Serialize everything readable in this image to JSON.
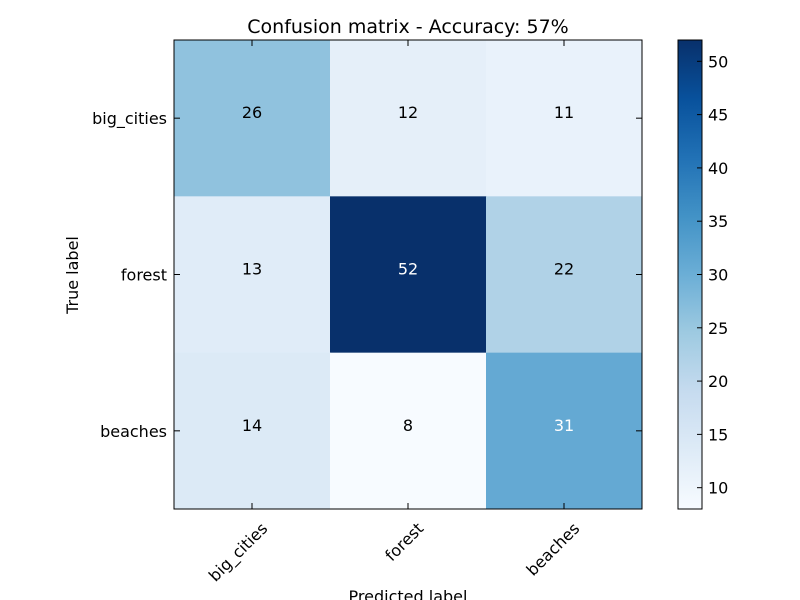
{
  "chart_data": {
    "type": "heatmap",
    "title": "Confusion matrix - Accuracy: 57%",
    "xlabel": "Predicted label",
    "ylabel": "True label",
    "x_categories": [
      "big_cities",
      "forest",
      "beaches"
    ],
    "y_categories": [
      "big_cities",
      "forest",
      "beaches"
    ],
    "values": [
      [
        26,
        12,
        11
      ],
      [
        13,
        52,
        22
      ],
      [
        14,
        8,
        31
      ]
    ],
    "colormap": "Blues",
    "colorbar": {
      "min": 8,
      "max": 52,
      "ticks": [
        10,
        15,
        20,
        25,
        30,
        35,
        40,
        45,
        50
      ]
    },
    "light_text_color": "#ffffff",
    "dark_text_color": "#000000"
  }
}
